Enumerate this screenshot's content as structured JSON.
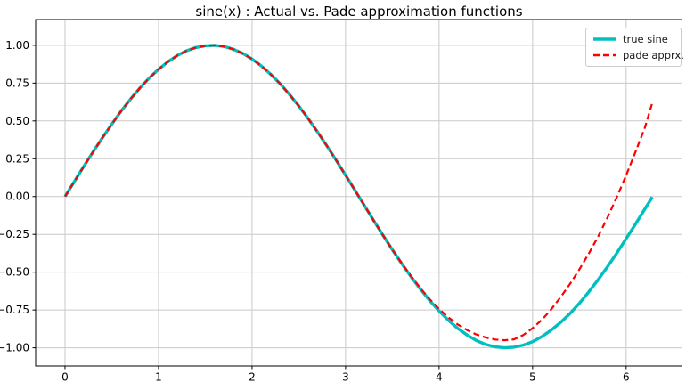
{
  "chart_data": {
    "type": "line",
    "title": "sine(x) : Actual vs. Pade approximation functions",
    "xlabel": "",
    "ylabel": "",
    "grid": true,
    "grid_color": "#c9c9c9",
    "spine_color": "#000000",
    "legend_position": "upper right",
    "xlim": [
      -0.314,
      6.597
    ],
    "ylim": [
      -1.12,
      1.17
    ],
    "x_ticks": {
      "values": [
        0,
        1,
        2,
        3,
        4,
        5,
        6
      ],
      "labels": [
        "0",
        "1",
        "2",
        "3",
        "4",
        "5",
        "6"
      ]
    },
    "y_ticks": {
      "values": [
        -1.0,
        -0.75,
        -0.5,
        -0.25,
        0.0,
        0.25,
        0.5,
        0.75,
        1.0
      ],
      "labels": [
        "−1.00",
        "−0.75",
        "−0.50",
        "−0.25",
        "0.00",
        "0.25",
        "0.50",
        "0.75",
        "1.00"
      ]
    },
    "x": [
      0.0,
      0.1,
      0.2,
      0.3,
      0.4,
      0.5,
      0.6,
      0.7,
      0.8,
      0.9,
      1.0,
      1.1,
      1.2,
      1.3,
      1.4,
      1.5,
      1.6,
      1.7,
      1.8,
      1.9,
      2.0,
      2.1,
      2.2,
      2.3,
      2.4,
      2.5,
      2.6,
      2.7,
      2.8,
      2.9,
      3.0,
      3.1,
      3.2,
      3.3,
      3.4,
      3.5,
      3.6,
      3.7,
      3.8,
      3.9,
      4.0,
      4.1,
      4.2,
      4.3,
      4.4,
      4.5,
      4.6,
      4.7,
      4.8,
      4.9,
      5.0,
      5.1,
      5.2,
      5.3,
      5.4,
      5.5,
      5.6,
      5.7,
      5.8,
      5.9,
      6.0,
      6.1,
      6.2,
      6.28
    ],
    "series": [
      {
        "name": "true sine",
        "color": "#00bfbf",
        "style": "solid",
        "width": 3.4,
        "values": [
          0.0,
          0.1,
          0.199,
          0.296,
          0.389,
          0.479,
          0.565,
          0.644,
          0.717,
          0.783,
          0.841,
          0.891,
          0.932,
          0.964,
          0.985,
          0.997,
          1.0,
          0.992,
          0.974,
          0.947,
          0.909,
          0.863,
          0.808,
          0.746,
          0.675,
          0.599,
          0.516,
          0.427,
          0.335,
          0.239,
          0.141,
          0.042,
          -0.058,
          -0.158,
          -0.256,
          -0.351,
          -0.443,
          -0.53,
          -0.612,
          -0.688,
          -0.757,
          -0.818,
          -0.872,
          -0.916,
          -0.952,
          -0.978,
          -0.994,
          -1.0,
          -0.996,
          -0.982,
          -0.959,
          -0.926,
          -0.883,
          -0.832,
          -0.773,
          -0.706,
          -0.631,
          -0.551,
          -0.465,
          -0.374,
          -0.279,
          -0.182,
          -0.083,
          -0.003
        ]
      },
      {
        "name": "pade apprx.",
        "color": "#ff0000",
        "style": "dashed",
        "width": 2.2,
        "values": [
          0.0,
          0.1,
          0.199,
          0.296,
          0.389,
          0.479,
          0.565,
          0.644,
          0.717,
          0.783,
          0.841,
          0.891,
          0.932,
          0.964,
          0.985,
          0.997,
          1.0,
          0.992,
          0.974,
          0.947,
          0.909,
          0.863,
          0.808,
          0.746,
          0.675,
          0.599,
          0.516,
          0.427,
          0.335,
          0.239,
          0.141,
          0.042,
          -0.058,
          -0.158,
          -0.256,
          -0.351,
          -0.441,
          -0.526,
          -0.606,
          -0.679,
          -0.743,
          -0.799,
          -0.846,
          -0.883,
          -0.912,
          -0.932,
          -0.945,
          -0.95,
          -0.944,
          -0.915,
          -0.87,
          -0.815,
          -0.745,
          -0.665,
          -0.578,
          -0.482,
          -0.378,
          -0.265,
          -0.14,
          -0.005,
          0.14,
          0.295,
          0.455,
          0.62
        ]
      }
    ]
  }
}
